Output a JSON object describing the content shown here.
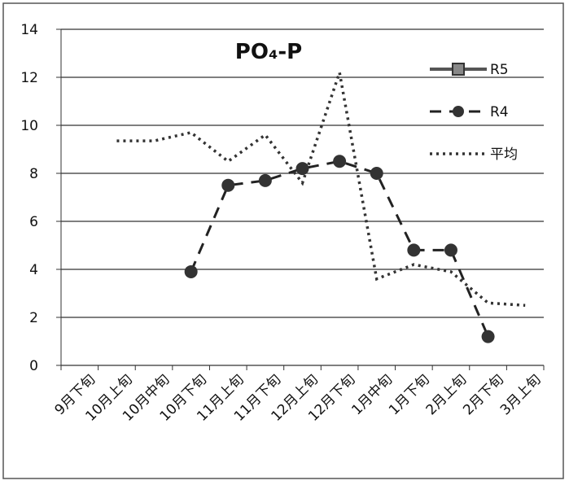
{
  "chart_data": {
    "type": "line",
    "title": "PO₄-P",
    "categories": [
      "9月下旬",
      "10月上旬",
      "10月中旬",
      "10月下旬",
      "11月上旬",
      "11月下旬",
      "12月上旬",
      "12月下旬",
      "1月中旬",
      "1月下旬",
      "2月上旬",
      "2月下旬",
      "3月上旬"
    ],
    "series": [
      {
        "name": "R5",
        "color": "#555555",
        "values": [
          null,
          null,
          null,
          null,
          null,
          null,
          null,
          null,
          null,
          null,
          null,
          null,
          null
        ]
      },
      {
        "name": "R4",
        "color": "#222222",
        "values": [
          null,
          null,
          null,
          3.9,
          7.5,
          7.7,
          8.2,
          8.5,
          8.0,
          4.8,
          4.8,
          1.2,
          null
        ]
      },
      {
        "name": "平均",
        "color": "#333333",
        "values": [
          null,
          9.35,
          9.35,
          9.7,
          8.5,
          9.6,
          7.6,
          12.2,
          3.6,
          4.2,
          3.9,
          2.6,
          2.5
        ]
      }
    ],
    "ylim": [
      0,
      14
    ],
    "yticks": [
      0,
      2,
      4,
      6,
      8,
      10,
      12,
      14
    ],
    "grid": true
  }
}
